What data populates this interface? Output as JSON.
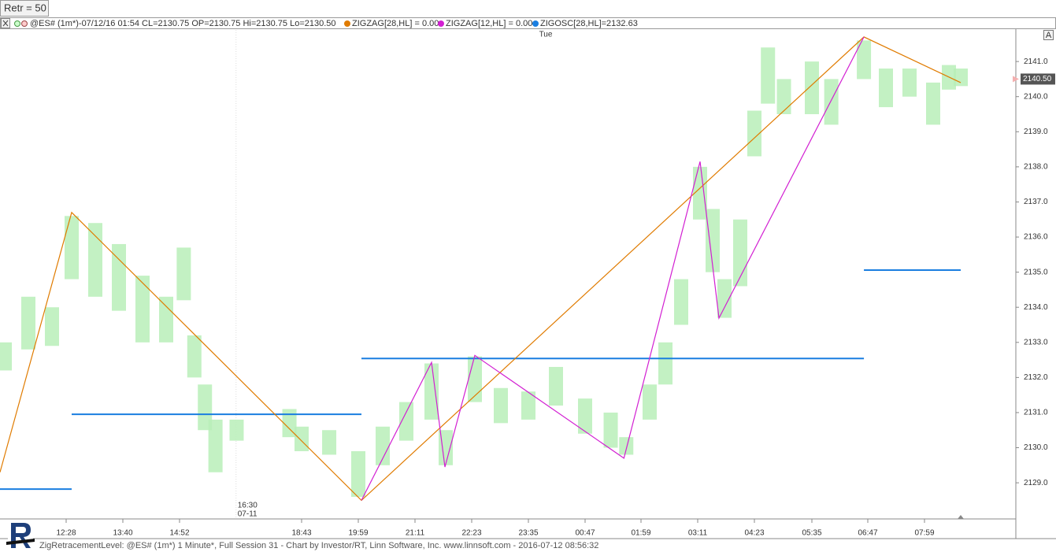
{
  "toolbar": {
    "button": "Retr = 50",
    "corner_button": "A"
  },
  "legend": {
    "symbol": "@ES# (1m*)-07/12/16 01:54 CL=2130.75 OP=2130.75 Hi=2130.75 Lo=2130.50",
    "items": [
      {
        "label": "ZIGZAG[28,HL] = 0.00",
        "color": "#e07b00"
      },
      {
        "label": "ZIGZAG[12,HL] = 0.00",
        "color": "#d21fd2"
      },
      {
        "label": "ZIGOSC[28,HL]=2132.63",
        "color": "#1a7ee0"
      }
    ]
  },
  "footer": "ZigRetracementLevel: @ES# (1m*) 1 Minute*, Full Session 31 - Chart by Investor/RT, Linn Software, Inc. www.linnsoft.com - 2016-07-12 08:56:32",
  "chart_data": {
    "type": "line",
    "day_label": "Tue",
    "session_marker": {
      "time": "16:30",
      "date": "07-11"
    },
    "xlim": [
      "11:04",
      "09:55"
    ],
    "xticks": [
      "12:28",
      "13:40",
      "14:52",
      "18:43",
      "19:59",
      "21:11",
      "22:23",
      "23:35",
      "00:47",
      "01:59",
      "03:11",
      "04:23",
      "05:35",
      "06:47",
      "07:59"
    ],
    "ylim": [
      2128,
      2141.9
    ],
    "yticks": [
      {
        "value": 2129,
        "label": "2129.0"
      },
      {
        "value": 2130,
        "label": "2130.0"
      },
      {
        "value": 2131,
        "label": "2131.0"
      },
      {
        "value": 2132,
        "label": "2132.0"
      },
      {
        "value": 2133,
        "label": "2133.0"
      },
      {
        "value": 2134,
        "label": "2134.0"
      },
      {
        "value": 2135,
        "label": "2135.0"
      },
      {
        "value": 2136,
        "label": "2136.0"
      },
      {
        "value": 2137,
        "label": "2137.0"
      },
      {
        "value": 2138,
        "label": "2138.0"
      },
      {
        "value": 2139,
        "label": "2139.0"
      },
      {
        "value": 2140,
        "label": "2140.0"
      },
      {
        "value": 2141,
        "label": "2141.0"
      }
    ],
    "last_price": {
      "value": 2140.5,
      "label": "2140.50"
    },
    "bars": {
      "color": "#b9efb9",
      "x": [
        "11:10",
        "11:40",
        "12:10",
        "12:35",
        "13:05",
        "13:35",
        "14:05",
        "14:35",
        "15:00",
        "15:20",
        "15:40",
        "16:00",
        "16:40",
        "18:20",
        "18:43",
        "19:20",
        "19:59",
        "20:30",
        "21:00",
        "21:32",
        "21:50",
        "22:27",
        "23:00",
        "23:35",
        "00:10",
        "00:47",
        "01:20",
        "01:40",
        "02:10",
        "02:30",
        "02:50",
        "03:14",
        "03:30",
        "03:45",
        "04:05",
        "04:23",
        "04:40",
        "05:00",
        "05:35",
        "06:00",
        "06:42",
        "07:10",
        "07:40",
        "08:10",
        "08:30",
        "08:45"
      ],
      "high": [
        2133.0,
        2134.3,
        2134.0,
        2136.6,
        2136.4,
        2135.8,
        2134.9,
        2134.3,
        2135.7,
        2133.2,
        2131.8,
        2130.8,
        2130.8,
        2131.1,
        2130.6,
        2130.5,
        2129.9,
        2130.6,
        2131.3,
        2132.4,
        2130.5,
        2132.6,
        2131.7,
        2131.6,
        2132.3,
        2131.4,
        2131.0,
        2130.3,
        2131.8,
        2133.0,
        2134.8,
        2138.0,
        2136.8,
        2134.8,
        2136.5,
        2139.6,
        2141.4,
        2140.5,
        2141.0,
        2140.5,
        2141.6,
        2140.8,
        2140.8,
        2140.4,
        2140.9,
        2140.8
      ],
      "low": [
        2132.2,
        2132.8,
        2132.9,
        2134.8,
        2134.3,
        2133.9,
        2133.0,
        2133.0,
        2134.2,
        2132.0,
        2130.5,
        2129.3,
        2130.2,
        2130.3,
        2129.9,
        2129.8,
        2128.6,
        2129.5,
        2130.2,
        2130.8,
        2129.5,
        2131.3,
        2130.7,
        2130.8,
        2131.2,
        2130.4,
        2130.0,
        2129.8,
        2130.8,
        2131.8,
        2133.5,
        2136.5,
        2135.0,
        2133.7,
        2134.6,
        2138.3,
        2139.8,
        2139.5,
        2139.5,
        2139.2,
        2140.5,
        2139.7,
        2140.0,
        2139.2,
        2140.2,
        2140.3
      ]
    },
    "series": [
      {
        "color": "#e07b00",
        "x": [
          "11:04",
          "12:35",
          "20:03",
          "06:42",
          "08:45"
        ],
        "values": [
          2129.3,
          2136.7,
          2128.5,
          2141.7,
          2140.4
        ]
      },
      {
        "color": "#d21fd2",
        "x": [
          "20:03",
          "21:32",
          "21:49",
          "22:27",
          "01:37",
          "03:14",
          "03:38",
          "06:42"
        ],
        "values": [
          2128.5,
          2132.43,
          2129.45,
          2132.63,
          2129.7,
          2138.15,
          2133.69,
          2141.7
        ]
      }
    ],
    "levels": {
      "color": "#1a7ee0",
      "items": [
        {
          "x": [
            "11:04",
            "12:35"
          ],
          "value": 2128.82
        },
        {
          "x": [
            "12:35",
            "20:03"
          ],
          "value": 2130.95
        },
        {
          "x": [
            "20:03",
            "06:42"
          ],
          "value": 2132.54
        },
        {
          "x": [
            "06:42",
            "08:45"
          ],
          "value": 2135.06
        }
      ]
    }
  }
}
